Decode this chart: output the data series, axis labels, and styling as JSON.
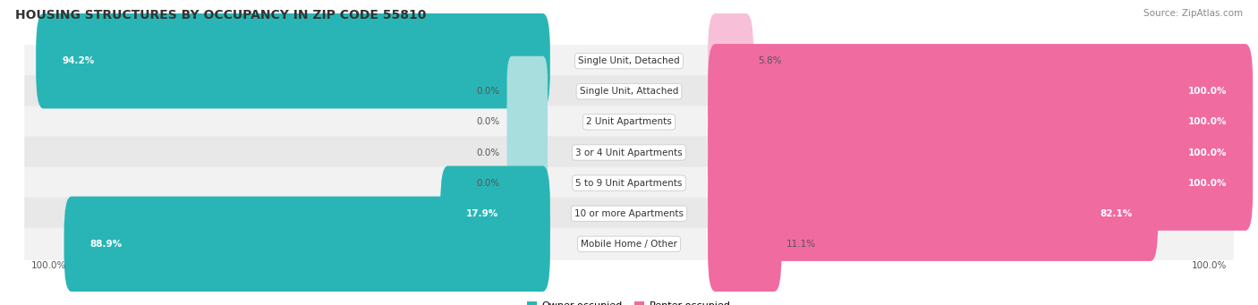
{
  "title": "HOUSING STRUCTURES BY OCCUPANCY IN ZIP CODE 55810",
  "source": "Source: ZipAtlas.com",
  "categories": [
    "Single Unit, Detached",
    "Single Unit, Attached",
    "2 Unit Apartments",
    "3 or 4 Unit Apartments",
    "5 to 9 Unit Apartments",
    "10 or more Apartments",
    "Mobile Home / Other"
  ],
  "owner_pct": [
    94.2,
    0.0,
    0.0,
    0.0,
    0.0,
    17.9,
    88.9
  ],
  "renter_pct": [
    5.8,
    100.0,
    100.0,
    100.0,
    100.0,
    82.1,
    11.1
  ],
  "owner_color": "#29b5b5",
  "renter_color": "#f06ba0",
  "owner_color_light": "#a8dede",
  "renter_color_light": "#f7c0d8",
  "row_bg_even": "#f2f2f2",
  "row_bg_odd": "#e8e8e8",
  "title_fontsize": 10,
  "source_fontsize": 7.5,
  "bar_label_fontsize": 7.5,
  "category_fontsize": 7.5,
  "figsize": [
    14.06,
    3.41
  ]
}
